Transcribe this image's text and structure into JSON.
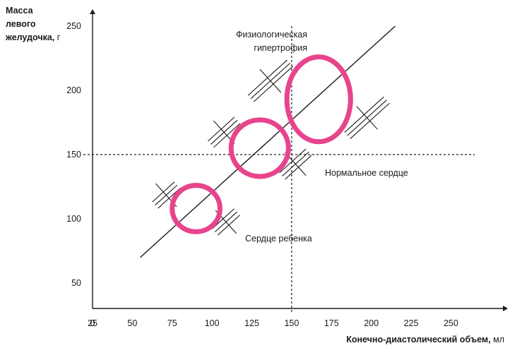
{
  "chart_data": {
    "type": "scatter",
    "y_title": {
      "line1": "Масса",
      "line2": "левого",
      "line3": "желудочка,",
      "unit": "г"
    },
    "x_title": {
      "main": "Конечно-диастолический объем,",
      "unit": "мл"
    },
    "x_ticks": [
      0,
      25,
      50,
      75,
      100,
      125,
      150,
      175,
      200,
      225,
      250
    ],
    "y_ticks": [
      50,
      100,
      150,
      200,
      250
    ],
    "reference_lines": {
      "x": 150,
      "y": 150
    },
    "regression_line": {
      "from": [
        55,
        70
      ],
      "to": [
        215,
        250
      ]
    },
    "points": [
      {
        "name": "Сердце ребенка",
        "x": 90,
        "y": 108,
        "rx": 15,
        "ry": 18
      },
      {
        "name": "Нормальное сердце",
        "x": 130,
        "y": 155,
        "rx": 18,
        "ry": 22
      },
      {
        "name": "Физиологическая гипертрофия",
        "x": 167,
        "y": 193,
        "rx": 20,
        "ry": 33
      }
    ],
    "annotations": {
      "physiological_line1": "Физиологическая",
      "physiological_line2": "гипертрофия",
      "normal": "Нормальное сердце",
      "child": "Сердце ребенка"
    },
    "colors": {
      "circle": "#e8448e",
      "lines": "#1a1a1a"
    }
  }
}
